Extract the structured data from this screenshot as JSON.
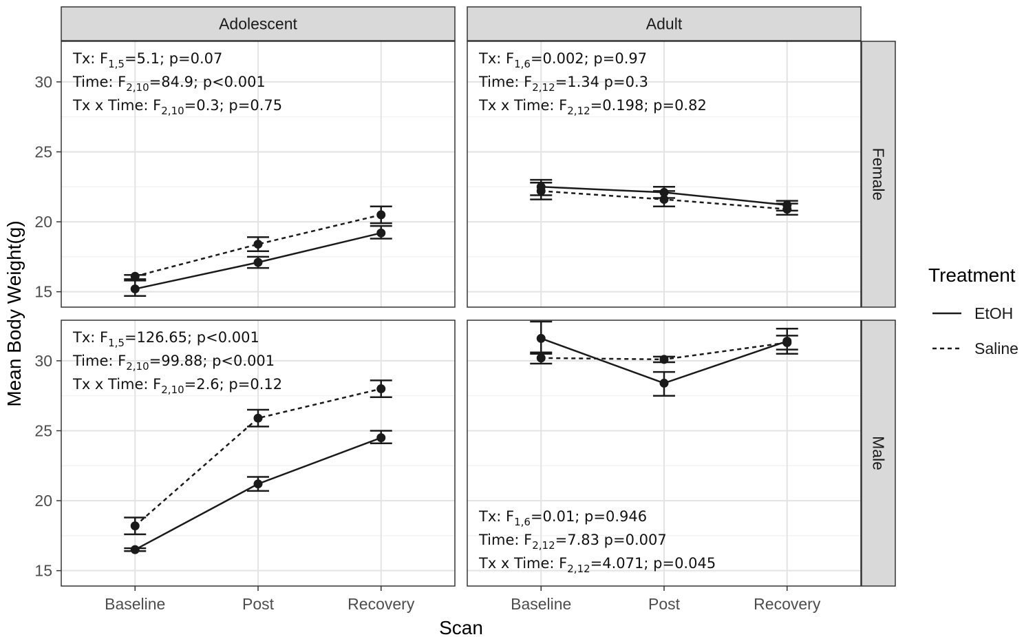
{
  "chart_data": {
    "type": "line",
    "xlabel": "Scan",
    "ylabel": "Mean Body Weight(g)",
    "categories": [
      "Baseline",
      "Post",
      "Recovery"
    ],
    "yticks": [
      15,
      20,
      25,
      30
    ],
    "ylim": [
      13.9,
      32.9
    ],
    "grid": true,
    "facet_columns": [
      "Adolescent",
      "Adult"
    ],
    "facet_rows": [
      "Female",
      "Male"
    ],
    "legend": {
      "title": "Treatment",
      "position": "right",
      "entries": [
        {
          "name": "EtOH",
          "dash": "solid"
        },
        {
          "name": "Saline",
          "dash": "dashed"
        }
      ]
    },
    "panels": [
      {
        "col": "Adolescent",
        "row": "Female",
        "series": [
          {
            "name": "EtOH",
            "values": [
              15.2,
              17.1,
              19.2
            ],
            "err_low": [
              14.7,
              16.7,
              18.8
            ],
            "err_high": [
              15.8,
              17.5,
              19.7
            ]
          },
          {
            "name": "Saline",
            "values": [
              16.1,
              18.4,
              20.5
            ],
            "err_low": [
              15.9,
              17.9,
              19.9
            ],
            "err_high": [
              16.2,
              18.9,
              21.1
            ]
          }
        ],
        "annotations": {
          "position": "top",
          "lines": [
            {
              "pre": "Tx: F",
              "sub": "1,5",
              "post": "=5.1; p=0.07"
            },
            {
              "pre": "Time: F",
              "sub": "2,10",
              "post": "=84.9; p<0.001"
            },
            {
              "pre": "Tx x Time: F",
              "sub": "2,10",
              "post": "=0.3; p=0.75"
            }
          ]
        }
      },
      {
        "col": "Adult",
        "row": "Female",
        "series": [
          {
            "name": "EtOH",
            "values": [
              22.5,
              22.1,
              21.2
            ],
            "err_low": [
              21.9,
              21.7,
              20.8
            ],
            "err_high": [
              23.0,
              22.5,
              21.5
            ]
          },
          {
            "name": "Saline",
            "values": [
              22.2,
              21.6,
              20.9
            ],
            "err_low": [
              21.6,
              21.1,
              20.5
            ],
            "err_high": [
              22.8,
              22.2,
              21.3
            ]
          }
        ],
        "annotations": {
          "position": "top",
          "lines": [
            {
              "pre": "Tx: F",
              "sub": "1,6",
              "post": "=0.002; p=0.97"
            },
            {
              "pre": "Time: F",
              "sub": "2,12",
              "post": "=1.34 p=0.3"
            },
            {
              "pre": "Tx x Time: F",
              "sub": "2,12",
              "post": "=0.198; p=0.82"
            }
          ]
        }
      },
      {
        "col": "Adolescent",
        "row": "Male",
        "series": [
          {
            "name": "EtOH",
            "values": [
              16.5,
              21.2,
              24.5
            ],
            "err_low": [
              16.4,
              20.7,
              24.1
            ],
            "err_high": [
              16.6,
              21.7,
              25.0
            ]
          },
          {
            "name": "Saline",
            "values": [
              18.2,
              25.9,
              28.0
            ],
            "err_low": [
              17.6,
              25.3,
              27.4
            ],
            "err_high": [
              18.8,
              26.5,
              28.6
            ]
          }
        ],
        "annotations": {
          "position": "top",
          "lines": [
            {
              "pre": "Tx: F",
              "sub": "1,5",
              "post": "=126.65; p<0.001"
            },
            {
              "pre": "Time: F",
              "sub": "2,10",
              "post": "=99.88; p<0.001"
            },
            {
              "pre": "Tx x Time: F",
              "sub": "2,10",
              "post": "=2.6; p=0.12"
            }
          ]
        }
      },
      {
        "col": "Adult",
        "row": "Male",
        "series": [
          {
            "name": "EtOH",
            "values": [
              31.6,
              28.4,
              31.4
            ],
            "err_low": [
              30.5,
              27.5,
              30.5
            ],
            "err_high": [
              32.8,
              29.2,
              32.3
            ]
          },
          {
            "name": "Saline",
            "values": [
              30.2,
              30.1,
              31.3
            ],
            "err_low": [
              29.8,
              29.9,
              30.8
            ],
            "err_high": [
              30.6,
              30.3,
              31.8
            ]
          }
        ],
        "annotations": {
          "position": "bottom",
          "lines": [
            {
              "pre": "Tx: F",
              "sub": "1,6",
              "post": "=0.01; p=0.946"
            },
            {
              "pre": "Time: F",
              "sub": "2,12",
              "post": "=7.83 p=0.007"
            },
            {
              "pre": "Tx x Time: F",
              "sub": "2,12",
              "post": "=4.071; p=0.045"
            }
          ]
        }
      }
    ]
  }
}
